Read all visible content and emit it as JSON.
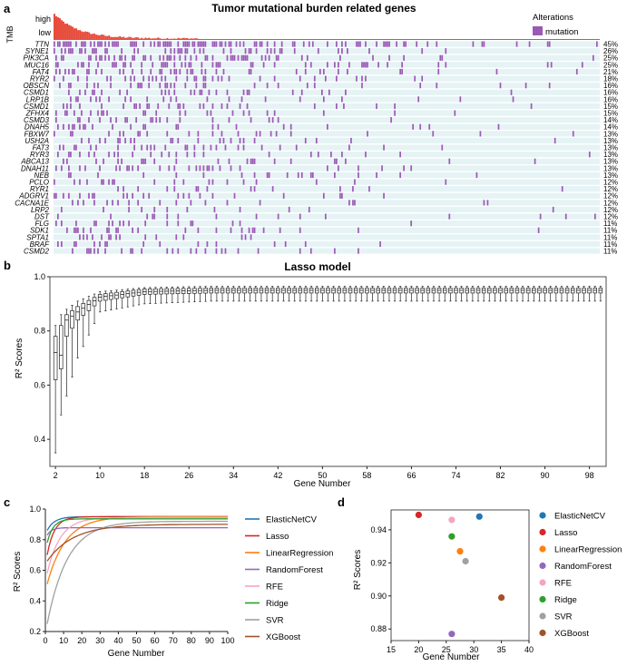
{
  "panels": {
    "a": "a",
    "b": "b",
    "c": "c",
    "d": "d"
  },
  "colors": {
    "mutation": "#9b59b6",
    "tmb_bar": "#e74c3c",
    "row_bg": "#e6f3f5"
  },
  "chart_data": [
    {
      "id": "a",
      "type": "heatmap",
      "title": "Tumor mutational burden related genes",
      "tmb_axis_label": "TMB",
      "tmb_high_label": "high",
      "tmb_low_label": "low",
      "legend_title": "Alterations",
      "legend_entries": [
        "mutation"
      ],
      "genes": [
        "TTN",
        "SYNE1",
        "PIK3CA",
        "MUC16",
        "FAT4",
        "RYR2",
        "OBSCN",
        "CSMD1",
        "LRP1B",
        "CSMD1",
        "ZFHX4",
        "CSMD3",
        "DNAH5",
        "FBXW7",
        "USH2A",
        "FAT3",
        "RYR3",
        "ABCA13",
        "DNAH11",
        "NEB",
        "PCLO",
        "RYR1",
        "ADGRV1",
        "CACNA1E",
        "LRP2",
        "DST",
        "FLG",
        "SDK1",
        "SPTA1",
        "BRAF",
        "CSMD2"
      ],
      "percents": [
        "45%",
        "26%",
        "25%",
        "25%",
        "21%",
        "18%",
        "16%",
        "16%",
        "16%",
        "15%",
        "15%",
        "14%",
        "14%",
        "13%",
        "13%",
        "13%",
        "13%",
        "13%",
        "13%",
        "13%",
        "12%",
        "12%",
        "12%",
        "12%",
        "12%",
        "12%",
        "11%",
        "11%",
        "11%",
        "11%",
        "11%"
      ],
      "mutation_frequency": [
        45,
        26,
        25,
        25,
        21,
        18,
        16,
        16,
        16,
        15,
        15,
        14,
        14,
        13,
        13,
        13,
        13,
        13,
        13,
        13,
        12,
        12,
        12,
        12,
        12,
        12,
        11,
        11,
        11,
        11,
        11
      ]
    },
    {
      "id": "b",
      "type": "box",
      "title": "Lasso model",
      "xlabel": "Gene Number",
      "ylabel": "R² Scores",
      "ylim": [
        0.3,
        1.0
      ],
      "yticks": [
        "0.4",
        "0.6",
        "0.8",
        "1.0"
      ],
      "ytick_values": [
        0.4,
        0.6,
        0.8,
        1.0
      ],
      "xticks": [
        "2",
        "10",
        "18",
        "26",
        "34",
        "42",
        "50",
        "58",
        "66",
        "74",
        "82",
        "90",
        "98"
      ],
      "xtick_values": [
        2,
        10,
        18,
        26,
        34,
        42,
        50,
        58,
        66,
        74,
        82,
        90,
        98
      ],
      "x_range": [
        2,
        100
      ],
      "box_stats": [
        {
          "gene_number": 2,
          "min": 0.35,
          "q1": 0.62,
          "median": 0.72,
          "q3": 0.78,
          "max": 0.82
        },
        {
          "gene_number": 3,
          "min": 0.49,
          "q1": 0.66,
          "median": 0.71,
          "q3": 0.82,
          "max": 0.86
        },
        {
          "gene_number": 4,
          "min": 0.56,
          "q1": 0.78,
          "median": 0.84,
          "q3": 0.86,
          "max": 0.88
        },
        {
          "gene_number": 6,
          "min": 0.7,
          "q1": 0.84,
          "median": 0.87,
          "q3": 0.89,
          "max": 0.91
        },
        {
          "gene_number": 10,
          "min": 0.87,
          "q1": 0.91,
          "median": 0.925,
          "q3": 0.935,
          "max": 0.945
        },
        {
          "gene_number": 18,
          "min": 0.9,
          "q1": 0.935,
          "median": 0.945,
          "q3": 0.955,
          "max": 0.96
        },
        {
          "gene_number": 30,
          "min": 0.91,
          "q1": 0.94,
          "median": 0.95,
          "q3": 0.958,
          "max": 0.965
        },
        {
          "gene_number": 100,
          "min": 0.91,
          "q1": 0.94,
          "median": 0.95,
          "q3": 0.958,
          "max": 0.965
        }
      ]
    },
    {
      "id": "c",
      "type": "line",
      "xlabel": "Gene Number",
      "ylabel": "R² Scores",
      "xlim": [
        0,
        100
      ],
      "ylim": [
        0.2,
        1.0
      ],
      "xticks": [
        "0",
        "10",
        "20",
        "30",
        "40",
        "50",
        "60",
        "70",
        "80",
        "90",
        "100"
      ],
      "xtick_values": [
        0,
        10,
        20,
        30,
        40,
        50,
        60,
        70,
        80,
        90,
        100
      ],
      "yticks": [
        "0.2",
        "0.4",
        "0.6",
        "0.8",
        "1.0"
      ],
      "ytick_values": [
        0.2,
        0.4,
        0.6,
        0.8,
        1.0
      ],
      "series": [
        {
          "name": "ElasticNetCV",
          "color": "#1f77b4",
          "start": 0.86,
          "plateau": 0.95,
          "k": 0.25
        },
        {
          "name": "Lasso",
          "color": "#d62728",
          "start": 0.7,
          "plateau": 0.95,
          "k": 0.25
        },
        {
          "name": "LinearRegression",
          "color": "#ff7f0e",
          "start": 0.51,
          "plateau": 0.95,
          "k": 0.1
        },
        {
          "name": "RandomForest",
          "color": "#9467bd",
          "start": 0.83,
          "plateau": 0.878,
          "k": 0.4
        },
        {
          "name": "RFE",
          "color": "#f4a6c0",
          "start": 0.58,
          "plateau": 0.945,
          "k": 0.14
        },
        {
          "name": "Ridge",
          "color": "#2ca02c",
          "start": 0.78,
          "plateau": 0.936,
          "k": 0.3
        },
        {
          "name": "SVR",
          "color": "#a0a0a0",
          "start": 0.25,
          "plateau": 0.92,
          "k": 0.09
        },
        {
          "name": "XGBoost",
          "color": "#a0522d",
          "start": 0.66,
          "plateau": 0.9,
          "k": 0.07
        }
      ]
    },
    {
      "id": "d",
      "type": "scatter",
      "xlabel": "Gene Number",
      "ylabel": "R² Scores",
      "xlim": [
        15,
        40
      ],
      "ylim": [
        0.873,
        0.952
      ],
      "xticks": [
        "15",
        "20",
        "25",
        "30",
        "35",
        "40"
      ],
      "xtick_values": [
        15,
        20,
        25,
        30,
        35,
        40
      ],
      "yticks": [
        "0.88",
        "0.90",
        "0.92",
        "0.94"
      ],
      "ytick_values": [
        0.88,
        0.9,
        0.92,
        0.94
      ],
      "points": [
        {
          "name": "ElasticNetCV",
          "color": "#1f77b4",
          "x": 31,
          "y": 0.948
        },
        {
          "name": "Lasso",
          "color": "#d62728",
          "x": 20,
          "y": 0.949
        },
        {
          "name": "LinearRegression",
          "color": "#ff7f0e",
          "x": 27.5,
          "y": 0.927
        },
        {
          "name": "RandomForest",
          "color": "#9467bd",
          "x": 26,
          "y": 0.877
        },
        {
          "name": "RFE",
          "color": "#f4a6c0",
          "x": 26,
          "y": 0.946
        },
        {
          "name": "Ridge",
          "color": "#2ca02c",
          "x": 26,
          "y": 0.936
        },
        {
          "name": "SVR",
          "color": "#a0a0a0",
          "x": 28.5,
          "y": 0.921
        },
        {
          "name": "XGBoost",
          "color": "#a0522d",
          "x": 35,
          "y": 0.899
        }
      ]
    }
  ]
}
